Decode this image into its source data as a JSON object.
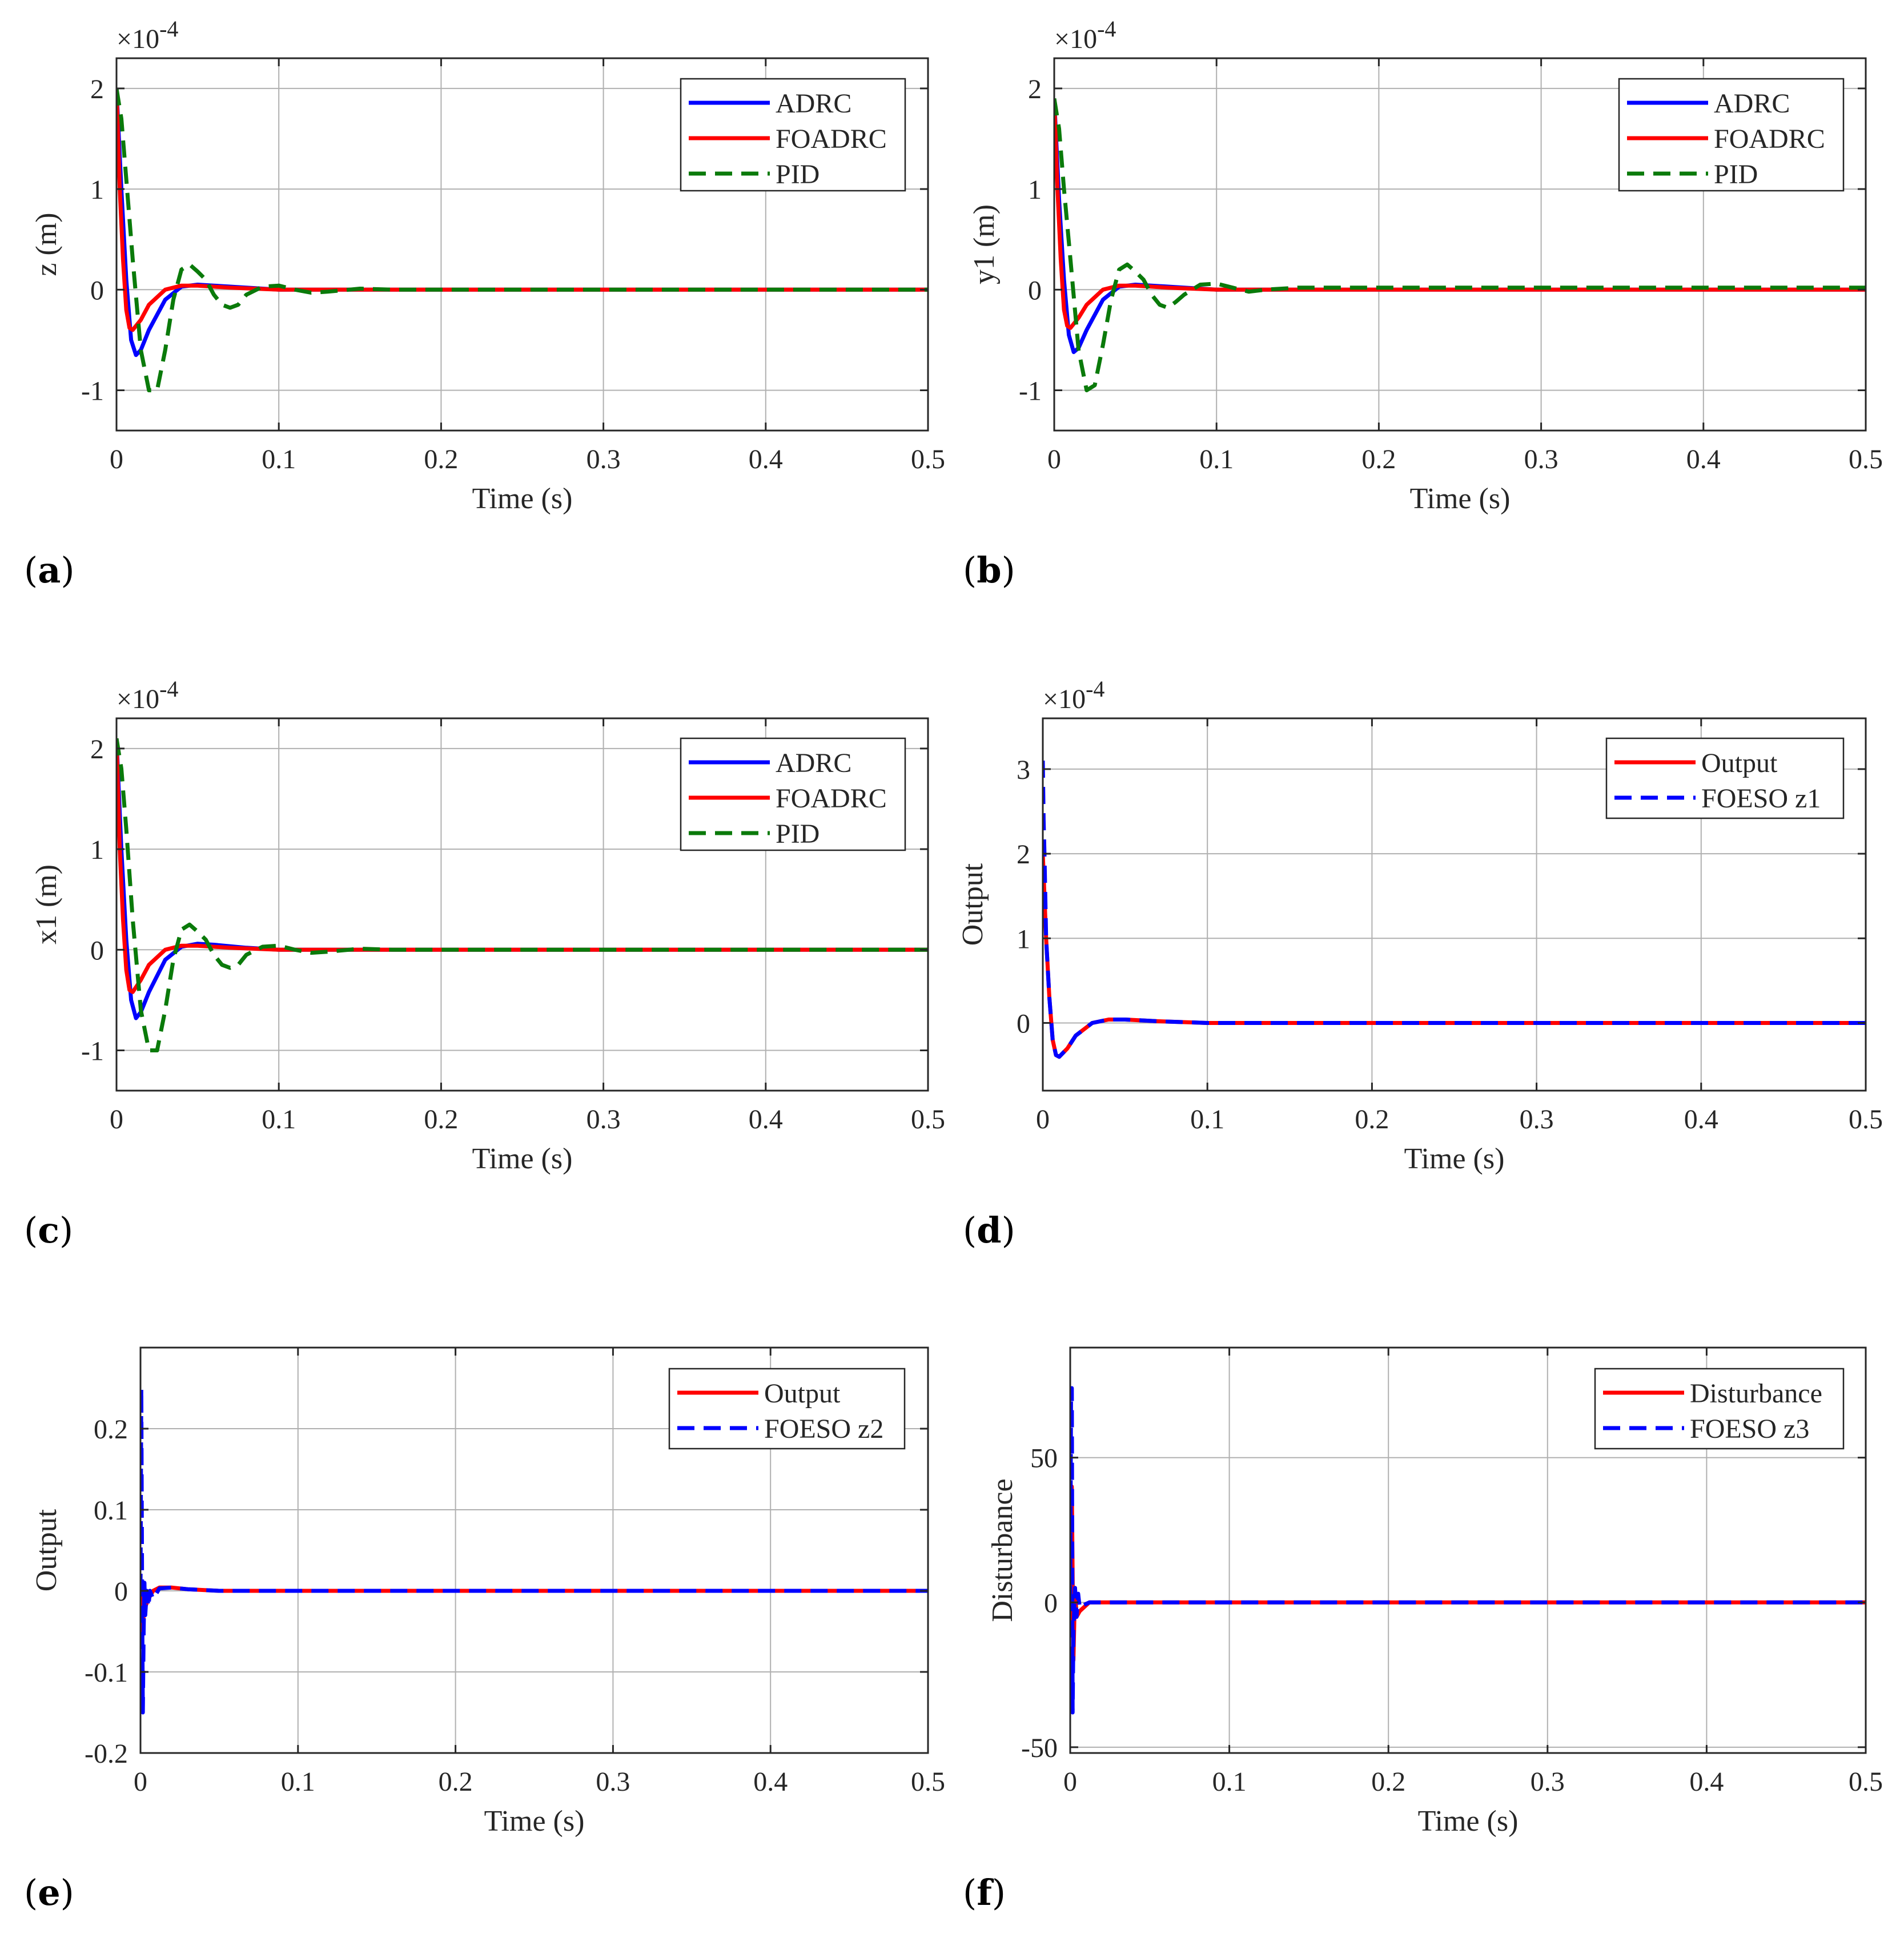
{
  "colors": {
    "ADRC": "#0000ff",
    "FOADRC": "#ff0000",
    "PID": "#0a7a0a",
    "grid": "#b0b0b0",
    "axis": "#262626"
  },
  "chart_data": [
    {
      "id": "a",
      "type": "line",
      "panel_label": "(a)",
      "xlabel": "Time (s)",
      "ylabel": "z (m)",
      "y_exponent": "×10-4",
      "xlim": [
        0,
        0.5
      ],
      "ylim": [
        -1.4,
        2.3
      ],
      "xticks": [
        0,
        0.1,
        0.2,
        0.3,
        0.4,
        0.5
      ],
      "xtick_labels": [
        "0",
        "0.1",
        "0.2",
        "0.3",
        "0.4",
        "0.5"
      ],
      "yticks": [
        -1,
        0,
        1,
        2
      ],
      "ytick_labels": [
        "-1",
        "0",
        "1",
        "2"
      ],
      "grid": true,
      "legend": "top-right",
      "series": [
        {
          "name": "ADRC",
          "style": "solid",
          "x": [
            0,
            0.003,
            0.006,
            0.009,
            0.012,
            0.015,
            0.02,
            0.03,
            0.04,
            0.05,
            0.06,
            0.08,
            0.1,
            0.12,
            0.5
          ],
          "y": [
            2.0,
            1.0,
            0.1,
            -0.5,
            -0.65,
            -0.6,
            -0.4,
            -0.1,
            0.03,
            0.05,
            0.04,
            0.02,
            0.0,
            0.0,
            0.0
          ]
        },
        {
          "name": "FOADRC",
          "style": "solid",
          "x": [
            0,
            0.002,
            0.004,
            0.006,
            0.008,
            0.01,
            0.015,
            0.02,
            0.03,
            0.04,
            0.05,
            0.07,
            0.1,
            0.5
          ],
          "y": [
            2.0,
            1.0,
            0.3,
            -0.2,
            -0.38,
            -0.4,
            -0.3,
            -0.15,
            0.0,
            0.04,
            0.04,
            0.02,
            0.0,
            0.0
          ]
        },
        {
          "name": "PID",
          "style": "dashed",
          "x": [
            0,
            0.003,
            0.006,
            0.01,
            0.015,
            0.02,
            0.025,
            0.03,
            0.035,
            0.04,
            0.045,
            0.05,
            0.055,
            0.06,
            0.065,
            0.07,
            0.075,
            0.08,
            0.09,
            0.1,
            0.11,
            0.12,
            0.13,
            0.15,
            0.17,
            0.2,
            0.5
          ],
          "y": [
            2.0,
            1.7,
            1.1,
            0.3,
            -0.6,
            -1.0,
            -1.0,
            -0.6,
            -0.1,
            0.2,
            0.25,
            0.18,
            0.1,
            -0.05,
            -0.15,
            -0.18,
            -0.15,
            -0.05,
            0.03,
            0.04,
            0.0,
            -0.03,
            -0.02,
            0.01,
            0.0,
            0.0,
            0.0
          ]
        }
      ]
    },
    {
      "id": "b",
      "type": "line",
      "panel_label": "(b)",
      "xlabel": "Time (s)",
      "ylabel": "y1 (m)",
      "y_exponent": "×10-4",
      "xlim": [
        0,
        0.5
      ],
      "ylim": [
        -1.4,
        2.3
      ],
      "xticks": [
        0,
        0.1,
        0.2,
        0.3,
        0.4,
        0.5
      ],
      "xtick_labels": [
        "0",
        "0.1",
        "0.2",
        "0.3",
        "0.4",
        "0.5"
      ],
      "yticks": [
        -1,
        0,
        1,
        2
      ],
      "ytick_labels": [
        "-1",
        "0",
        "1",
        "2"
      ],
      "grid": true,
      "legend": "top-right",
      "series": [
        {
          "name": "ADRC",
          "style": "solid",
          "x": [
            0,
            0.003,
            0.006,
            0.009,
            0.012,
            0.015,
            0.02,
            0.03,
            0.04,
            0.05,
            0.06,
            0.08,
            0.1,
            0.12,
            0.5
          ],
          "y": [
            1.9,
            0.9,
            0.1,
            -0.45,
            -0.62,
            -0.58,
            -0.4,
            -0.1,
            0.03,
            0.05,
            0.04,
            0.02,
            0.0,
            0.0,
            0.0
          ]
        },
        {
          "name": "FOADRC",
          "style": "solid",
          "x": [
            0,
            0.002,
            0.004,
            0.006,
            0.008,
            0.01,
            0.015,
            0.02,
            0.03,
            0.04,
            0.05,
            0.07,
            0.1,
            0.5
          ],
          "y": [
            1.9,
            1.0,
            0.3,
            -0.2,
            -0.36,
            -0.38,
            -0.28,
            -0.15,
            0.0,
            0.04,
            0.04,
            0.02,
            0.0,
            0.0
          ]
        },
        {
          "name": "PID",
          "style": "dashed",
          "x": [
            0,
            0.003,
            0.006,
            0.01,
            0.015,
            0.02,
            0.025,
            0.03,
            0.035,
            0.04,
            0.045,
            0.05,
            0.055,
            0.06,
            0.065,
            0.07,
            0.075,
            0.08,
            0.09,
            0.1,
            0.11,
            0.12,
            0.13,
            0.15,
            0.2,
            0.5
          ],
          "y": [
            1.9,
            1.6,
            1.0,
            0.3,
            -0.6,
            -1.0,
            -0.95,
            -0.55,
            -0.1,
            0.2,
            0.25,
            0.18,
            0.1,
            -0.05,
            -0.15,
            -0.18,
            -0.12,
            -0.05,
            0.05,
            0.06,
            0.02,
            -0.02,
            0.0,
            0.02,
            0.02,
            0.02
          ]
        }
      ]
    },
    {
      "id": "c",
      "type": "line",
      "panel_label": "(c)",
      "xlabel": "Time (s)",
      "ylabel": "x1 (m)",
      "y_exponent": "×10-4",
      "xlim": [
        0,
        0.5
      ],
      "ylim": [
        -1.4,
        2.3
      ],
      "xticks": [
        0,
        0.1,
        0.2,
        0.3,
        0.4,
        0.5
      ],
      "xtick_labels": [
        "0",
        "0.1",
        "0.2",
        "0.3",
        "0.4",
        "0.5"
      ],
      "yticks": [
        -1,
        0,
        1,
        2
      ],
      "ytick_labels": [
        "-1",
        "0",
        "1",
        "2"
      ],
      "grid": true,
      "legend": "top-right",
      "series": [
        {
          "name": "ADRC",
          "style": "solid",
          "x": [
            0,
            0.003,
            0.006,
            0.009,
            0.012,
            0.015,
            0.02,
            0.03,
            0.04,
            0.05,
            0.06,
            0.08,
            0.1,
            0.12,
            0.5
          ],
          "y": [
            2.1,
            1.0,
            0.1,
            -0.5,
            -0.68,
            -0.62,
            -0.42,
            -0.1,
            0.03,
            0.06,
            0.05,
            0.02,
            0.0,
            0.0,
            0.0
          ]
        },
        {
          "name": "FOADRC",
          "style": "solid",
          "x": [
            0,
            0.002,
            0.004,
            0.006,
            0.008,
            0.01,
            0.015,
            0.02,
            0.03,
            0.04,
            0.05,
            0.07,
            0.1,
            0.5
          ],
          "y": [
            2.1,
            1.0,
            0.3,
            -0.2,
            -0.4,
            -0.42,
            -0.3,
            -0.15,
            0.0,
            0.04,
            0.04,
            0.02,
            0.0,
            0.0
          ]
        },
        {
          "name": "PID",
          "style": "dashed",
          "x": [
            0,
            0.003,
            0.006,
            0.01,
            0.015,
            0.02,
            0.025,
            0.03,
            0.035,
            0.04,
            0.045,
            0.05,
            0.055,
            0.06,
            0.065,
            0.07,
            0.075,
            0.08,
            0.09,
            0.1,
            0.11,
            0.12,
            0.13,
            0.15,
            0.17,
            0.2,
            0.5
          ],
          "y": [
            2.1,
            1.8,
            1.2,
            0.3,
            -0.6,
            -1.0,
            -1.0,
            -0.6,
            -0.1,
            0.2,
            0.25,
            0.18,
            0.1,
            -0.05,
            -0.15,
            -0.18,
            -0.15,
            -0.05,
            0.03,
            0.04,
            0.0,
            -0.03,
            -0.02,
            0.01,
            0.0,
            0.0,
            0.0
          ]
        }
      ]
    },
    {
      "id": "d",
      "type": "line",
      "panel_label": "(d)",
      "xlabel": "Time (s)",
      "ylabel": "Output",
      "y_exponent": "×10-4",
      "xlim": [
        0,
        0.5
      ],
      "ylim": [
        -0.8,
        3.6
      ],
      "xticks": [
        0,
        0.1,
        0.2,
        0.3,
        0.4,
        0.5
      ],
      "xtick_labels": [
        "0",
        "0.1",
        "0.2",
        "0.3",
        "0.4",
        "0.5"
      ],
      "yticks": [
        0,
        1,
        2,
        3
      ],
      "ytick_labels": [
        "0",
        "1",
        "2",
        "3"
      ],
      "grid": true,
      "legend": "top-right",
      "series": [
        {
          "name": "Output",
          "style": "solid",
          "x": [
            0,
            0.002,
            0.004,
            0.006,
            0.008,
            0.01,
            0.015,
            0.02,
            0.03,
            0.04,
            0.05,
            0.07,
            0.1,
            0.5
          ],
          "y": [
            2.0,
            1.0,
            0.3,
            -0.2,
            -0.38,
            -0.4,
            -0.3,
            -0.15,
            0.0,
            0.04,
            0.04,
            0.02,
            0.0,
            0.0
          ]
        },
        {
          "name": "FOESO z1",
          "style": "dashed",
          "x": [
            0,
            0.0005,
            0.001,
            0.002,
            0.004,
            0.006,
            0.008,
            0.01,
            0.015,
            0.02,
            0.03,
            0.04,
            0.05,
            0.07,
            0.1,
            0.5
          ],
          "y": [
            3.1,
            2.4,
            2.0,
            1.0,
            0.3,
            -0.2,
            -0.38,
            -0.4,
            -0.3,
            -0.15,
            0.0,
            0.04,
            0.04,
            0.02,
            0.0,
            0.0
          ]
        }
      ]
    },
    {
      "id": "e",
      "type": "line",
      "panel_label": "(e)",
      "xlabel": "Time (s)",
      "ylabel": "Output",
      "y_exponent": "",
      "xlim": [
        0,
        0.5
      ],
      "ylim": [
        -0.2,
        0.3
      ],
      "xticks": [
        0,
        0.1,
        0.2,
        0.3,
        0.4,
        0.5
      ],
      "xtick_labels": [
        "0",
        "0.1",
        "0.2",
        "0.3",
        "0.4",
        "0.5"
      ],
      "yticks": [
        -0.2,
        -0.1,
        0,
        0.1,
        0.2
      ],
      "ytick_labels": [
        "-0.2",
        "-0.1",
        "0",
        "0.1",
        "0.2"
      ],
      "grid": true,
      "legend": "top-right",
      "series": [
        {
          "name": "Output",
          "style": "solid",
          "x": [
            0,
            0.001,
            0.002,
            0.003,
            0.005,
            0.008,
            0.012,
            0.02,
            0.03,
            0.05,
            0.5
          ],
          "y": [
            0.0,
            -0.06,
            -0.03,
            -0.02,
            -0.01,
            0.0,
            0.004,
            0.004,
            0.002,
            0.0,
            0.0
          ]
        },
        {
          "name": "FOESO z2",
          "style": "dashed",
          "x": [
            0,
            0.0005,
            0.001,
            0.0015,
            0.002,
            0.0025,
            0.003,
            0.004,
            0.005,
            0.006,
            0.008,
            0.012,
            0.02,
            0.03,
            0.05,
            0.5
          ],
          "y": [
            0.0,
            0.25,
            0.0,
            -0.15,
            -0.05,
            0.01,
            -0.03,
            0.0,
            -0.02,
            0.0,
            -0.01,
            0.003,
            0.004,
            0.002,
            0.0,
            0.0
          ]
        }
      ]
    },
    {
      "id": "f",
      "type": "line",
      "panel_label": "(f)",
      "xlabel": "Time (s)",
      "ylabel": "Disturbance",
      "y_exponent": "",
      "xlim": [
        0,
        0.5
      ],
      "ylim": [
        -52,
        88
      ],
      "xticks": [
        0,
        0.1,
        0.2,
        0.3,
        0.4,
        0.5
      ],
      "xtick_labels": [
        "0",
        "0.1",
        "0.2",
        "0.3",
        "0.4",
        "0.5"
      ],
      "yticks": [
        -50,
        0,
        50
      ],
      "ytick_labels": [
        "-50",
        "0",
        "50"
      ],
      "grid": true,
      "legend": "top-right",
      "series": [
        {
          "name": "Disturbance",
          "style": "solid",
          "x": [
            0,
            0.001,
            0.002,
            0.003,
            0.004,
            0.006,
            0.008,
            0.012,
            0.02,
            0.5
          ],
          "y": [
            0.0,
            40.0,
            -20.0,
            5.0,
            -5.0,
            -3.0,
            -2.0,
            0.0,
            0.0,
            0.0
          ]
        },
        {
          "name": "FOESO z3",
          "style": "dashed",
          "x": [
            0,
            0.0005,
            0.001,
            0.0015,
            0.002,
            0.003,
            0.004,
            0.005,
            0.006,
            0.008,
            0.012,
            0.02,
            0.5
          ],
          "y": [
            0.0,
            70.0,
            74.0,
            -38.0,
            -10.0,
            5.0,
            -5.0,
            3.0,
            -2.0,
            -1.0,
            0.0,
            0.0,
            0.0
          ]
        }
      ]
    }
  ]
}
